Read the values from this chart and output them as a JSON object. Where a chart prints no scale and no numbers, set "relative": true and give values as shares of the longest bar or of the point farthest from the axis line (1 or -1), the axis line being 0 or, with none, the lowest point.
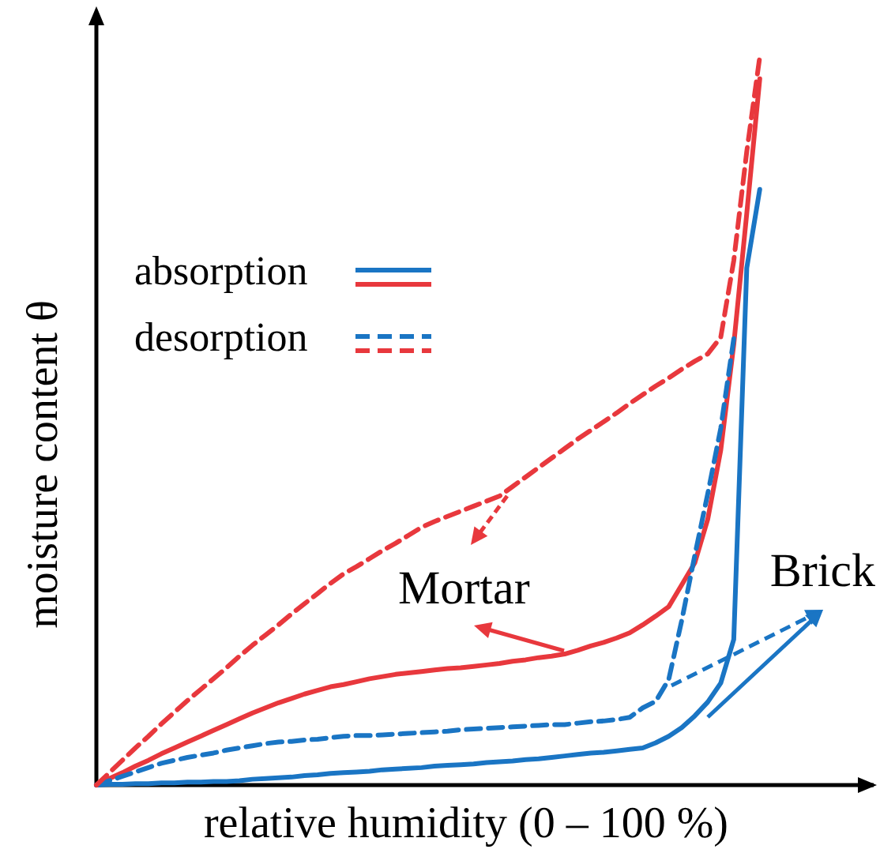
{
  "chart_data": {
    "type": "line",
    "relative": true,
    "xlabel": "relative humidity (0 – 100 %)",
    "ylabel": "moisture content θ",
    "legend": "top left",
    "annotations": [
      "Mortar",
      "Brick"
    ],
    "categories": [
      null,
      null,
      null,
      null,
      null,
      null,
      null,
      null,
      null,
      null,
      null,
      null,
      null,
      null,
      null,
      null,
      null,
      null,
      null,
      null,
      null,
      null,
      null,
      null,
      null,
      null,
      null,
      null,
      null,
      null,
      null,
      null,
      null,
      null,
      null,
      null,
      null,
      null,
      null,
      null,
      null,
      null,
      null,
      null,
      null,
      null,
      null,
      null,
      null,
      null,
      null,
      null,
      null,
      null,
      null,
      null,
      null,
      null,
      null,
      null,
      null
    ],
    "series": [
      {
        "name": "absorption",
        "color": "#1a75c4",
        "line_style": "solid",
        "values": [
          0,
          0.001,
          0.001,
          0.002,
          0.002,
          0.003,
          0.003,
          0.004,
          0.004,
          0.005,
          0.005,
          0.006,
          0.008,
          0.009,
          0.01,
          0.011,
          0.013,
          0.014,
          0.016,
          0.017,
          0.018,
          0.019,
          0.021,
          0.022,
          0.023,
          0.024,
          0.026,
          0.027,
          0.028,
          0.029,
          0.031,
          0.032,
          0.033,
          0.035,
          0.036,
          0.038,
          0.04,
          0.042,
          0.044,
          0.045,
          0.047,
          0.049,
          0.051,
          0.058,
          0.067,
          0.079,
          0.095,
          0.114,
          0.14,
          0.2,
          0.71,
          0.818,
          null,
          null,
          null,
          null,
          null,
          null,
          null,
          null,
          null
        ]
      },
      {
        "color": "#e8383d",
        "line_style": "solid",
        "values": [
          0,
          0.009,
          0.017,
          0.026,
          0.034,
          0.043,
          0.051,
          0.059,
          0.067,
          0.075,
          0.083,
          0.091,
          0.099,
          0.106,
          0.113,
          0.119,
          0.125,
          0.13,
          0.135,
          0.138,
          0.142,
          0.146,
          0.149,
          0.152,
          0.154,
          0.156,
          0.158,
          0.16,
          0.161,
          0.163,
          0.165,
          0.167,
          0.17,
          0.172,
          0.175,
          0.177,
          0.18,
          0.185,
          0.191,
          0.196,
          0.202,
          0.209,
          0.22,
          0.232,
          0.245,
          0.275,
          0.305,
          0.365,
          0.46,
          0.605,
          0.785,
          0.97,
          null,
          null,
          null,
          null,
          null,
          null,
          null,
          null,
          null
        ]
      },
      {
        "name": "desorption",
        "color": "#1a75c4",
        "line_style": "dashed",
        "values": [
          0,
          0.006,
          0.012,
          0.018,
          0.024,
          0.03,
          0.034,
          0.038,
          0.041,
          0.044,
          0.048,
          0.051,
          0.054,
          0.057,
          0.059,
          0.06,
          0.062,
          0.063,
          0.065,
          0.067,
          0.068,
          0.068,
          0.069,
          0.07,
          0.071,
          0.072,
          0.073,
          0.074,
          0.076,
          0.077,
          0.078,
          0.079,
          0.08,
          0.081,
          0.082,
          0.083,
          0.083,
          0.085,
          0.087,
          0.088,
          0.09,
          0.093,
          0.106,
          0.115,
          0.145,
          0.226,
          0.315,
          0.4,
          0.49,
          0.613,
          null,
          null,
          null,
          null,
          null,
          null,
          null,
          null,
          null,
          null,
          null
        ]
      },
      {
        "color": "#e8383d",
        "line_style": "dashed",
        "values": [
          0,
          0.017,
          0.034,
          0.051,
          0.067,
          0.084,
          0.1,
          0.116,
          0.131,
          0.146,
          0.161,
          0.177,
          0.192,
          0.206,
          0.22,
          0.235,
          0.249,
          0.263,
          0.277,
          0.29,
          0.3,
          0.311,
          0.322,
          0.332,
          0.343,
          0.354,
          0.362,
          0.369,
          0.376,
          0.383,
          0.39,
          0.397,
          0.41,
          0.423,
          0.436,
          0.449,
          0.462,
          0.475,
          0.487,
          0.499,
          0.511,
          0.524,
          0.536,
          0.548,
          0.559,
          0.571,
          0.582,
          0.592,
          0.615,
          0.72,
          0.87,
          1,
          null,
          null,
          null,
          null,
          null,
          null,
          null,
          null,
          null
        ]
      }
    ]
  }
}
